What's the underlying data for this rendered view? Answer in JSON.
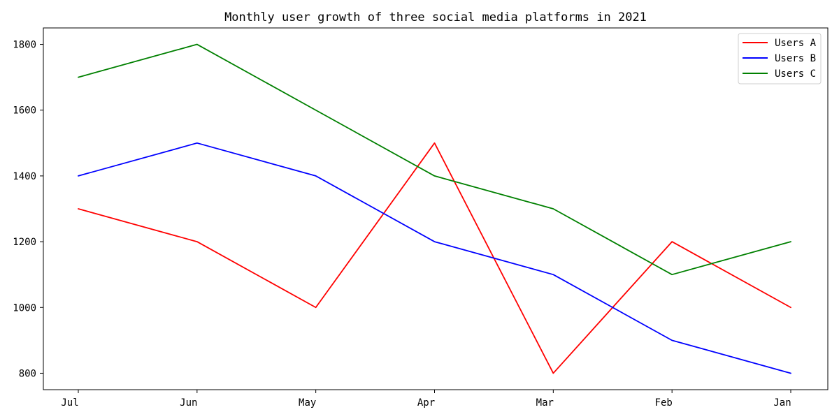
{
  "chart_data": {
    "type": "line",
    "title": "Monthly user growth of three social media platforms in 2021",
    "xlabel": "",
    "ylabel": "",
    "categories": [
      "Jul",
      "Jun",
      "May",
      "Apr",
      "Mar",
      "Feb",
      "Jan"
    ],
    "ylim": [
      750,
      1850
    ],
    "yticks": [
      800,
      1000,
      1200,
      1400,
      1600,
      1800
    ],
    "grid": false,
    "legend_position": "top-right",
    "series": [
      {
        "name": "Users A",
        "color": "#ff0000",
        "values": [
          1300,
          1200,
          1000,
          1500,
          800,
          1200,
          1000
        ]
      },
      {
        "name": "Users B",
        "color": "#0000ff",
        "values": [
          1400,
          1500,
          1400,
          1200,
          1100,
          900,
          800
        ]
      },
      {
        "name": "Users C",
        "color": "#008000",
        "values": [
          1700,
          1800,
          1600,
          1400,
          1300,
          1100,
          1200
        ]
      }
    ]
  }
}
